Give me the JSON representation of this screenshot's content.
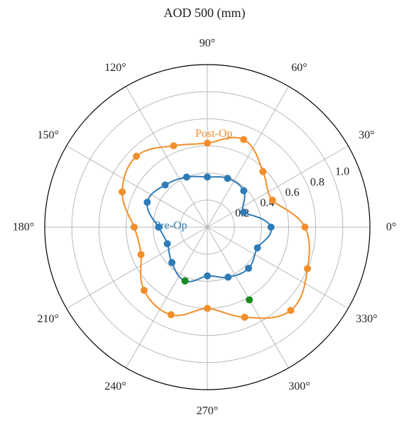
{
  "chart_data": {
    "type": "polar-line",
    "title": "AOD 500 (mm)",
    "angle_unit": "deg",
    "angle_ticks": [
      0,
      30,
      60,
      90,
      120,
      150,
      180,
      210,
      240,
      270,
      300,
      330
    ],
    "angle_tick_labels": [
      "0°",
      "30°",
      "60°",
      "90°",
      "120°",
      "150°",
      "180°",
      "210°",
      "240°",
      "270°",
      "300°",
      "330°"
    ],
    "r_ticks": [
      0.2,
      0.4,
      0.6,
      0.8,
      1.0
    ],
    "r_tick_labels": [
      "0.2",
      "0.4",
      "0.6",
      "0.8",
      "1.0"
    ],
    "r_range": [
      0,
      1.2
    ],
    "grid": true,
    "series": [
      {
        "name": "Pre-Op",
        "color": "#2f7bb6",
        "points": [
          {
            "theta": 0,
            "r": 0.47
          },
          {
            "theta": 22.5,
            "r": 0.29
          },
          {
            "theta": 45,
            "r": 0.38
          },
          {
            "theta": 67.5,
            "r": 0.39
          },
          {
            "theta": 90,
            "r": 0.37
          },
          {
            "theta": 112.5,
            "r": 0.4
          },
          {
            "theta": 135,
            "r": 0.44
          },
          {
            "theta": 157.5,
            "r": 0.48
          },
          {
            "theta": 180,
            "r": 0.36
          },
          {
            "theta": 202.5,
            "r": 0.32
          },
          {
            "theta": 225,
            "r": 0.37
          },
          {
            "theta": 247.5,
            "r": 0.43
          },
          {
            "theta": 270,
            "r": 0.36
          },
          {
            "theta": 292.5,
            "r": 0.4
          },
          {
            "theta": 315,
            "r": 0.43
          },
          {
            "theta": 337.5,
            "r": 0.4
          }
        ]
      },
      {
        "name": "Post-Op",
        "color": "#f28e2b",
        "points": [
          {
            "theta": 0,
            "r": 0.72
          },
          {
            "theta": 22.5,
            "r": 0.52
          },
          {
            "theta": 45,
            "r": 0.58
          },
          {
            "theta": 67.5,
            "r": 0.7
          },
          {
            "theta": 90,
            "r": 0.62
          },
          {
            "theta": 112.5,
            "r": 0.65
          },
          {
            "theta": 135,
            "r": 0.74
          },
          {
            "theta": 157.5,
            "r": 0.68
          },
          {
            "theta": 180,
            "r": 0.54
          },
          {
            "theta": 202.5,
            "r": 0.53
          },
          {
            "theta": 225,
            "r": 0.66
          },
          {
            "theta": 247.5,
            "r": 0.7
          },
          {
            "theta": 270,
            "r": 0.6
          },
          {
            "theta": 292.5,
            "r": 0.72
          },
          {
            "theta": 315,
            "r": 0.87
          },
          {
            "theta": 337.5,
            "r": 0.8
          }
        ]
      }
    ],
    "highlight_points": [
      {
        "theta": 247.5,
        "r": 0.43,
        "color": "#1a8a1a"
      },
      {
        "theta": 300,
        "r": 0.62,
        "color": "#1a8a1a"
      }
    ],
    "annotations": [
      {
        "text": "Post-Op",
        "theta": 86,
        "r": 0.69,
        "color": "#f28e2b"
      },
      {
        "text": "Pre-Op",
        "theta": 178,
        "r": 0.27,
        "color": "#2f7bb6"
      }
    ]
  }
}
